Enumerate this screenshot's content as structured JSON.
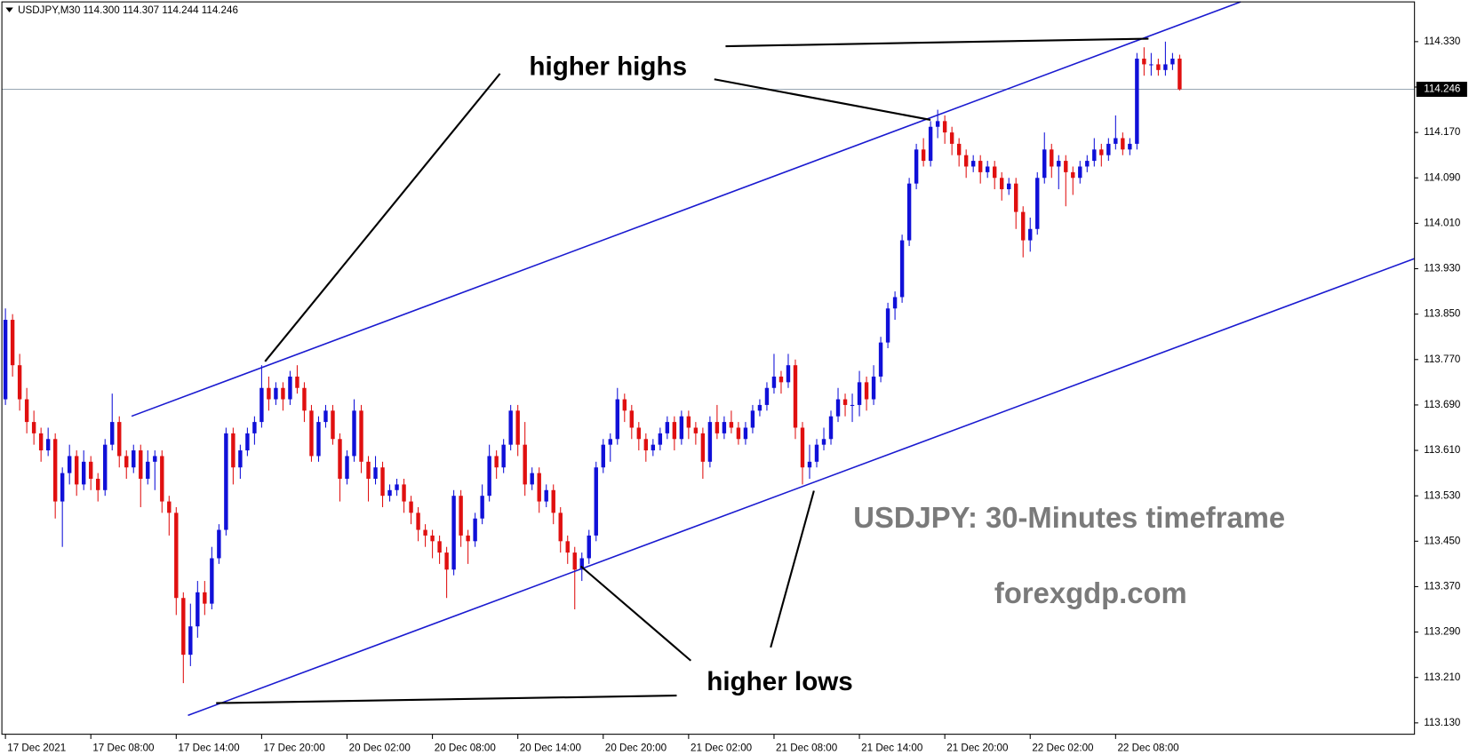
{
  "chart_data": {
    "type": "candlestick",
    "title": "USDJPY,M30 114.300 114.307 114.244 114.246",
    "up_color": "#1010d8",
    "down_color": "#e01010",
    "xlim": [
      -0.5,
      198
    ],
    "ylim": [
      113.11,
      114.4
    ],
    "yticks": [
      {
        "value": 114.33,
        "label": "114.330"
      },
      {
        "value": 114.25,
        "label": "114.250"
      },
      {
        "value": 114.17,
        "label": "114.170"
      },
      {
        "value": 114.09,
        "label": "114.090"
      },
      {
        "value": 114.01,
        "label": "114.010"
      },
      {
        "value": 113.93,
        "label": "113.930"
      },
      {
        "value": 113.85,
        "label": "113.850"
      },
      {
        "value": 113.77,
        "label": "113.770"
      },
      {
        "value": 113.69,
        "label": "113.690"
      },
      {
        "value": 113.61,
        "label": "113.610"
      },
      {
        "value": 113.53,
        "label": "113.530"
      },
      {
        "value": 113.45,
        "label": "113.450"
      },
      {
        "value": 113.37,
        "label": "113.370"
      },
      {
        "value": 113.29,
        "label": "113.290"
      },
      {
        "value": 113.21,
        "label": "113.210"
      },
      {
        "value": 113.13,
        "label": "113.130"
      }
    ],
    "xticks": [
      {
        "value": 0,
        "label": "17 Dec 2021"
      },
      {
        "value": 12,
        "label": "17 Dec 08:00"
      },
      {
        "value": 24,
        "label": "17 Dec 14:00"
      },
      {
        "value": 36,
        "label": "17 Dec 20:00"
      },
      {
        "value": 48,
        "label": "20 Dec 02:00"
      },
      {
        "value": 60,
        "label": "20 Dec 08:00"
      },
      {
        "value": 72,
        "label": "20 Dec 14:00"
      },
      {
        "value": 84,
        "label": "20 Dec 20:00"
      },
      {
        "value": 96,
        "label": "21 Dec 02:00"
      },
      {
        "value": 108,
        "label": "21 Dec 08:00"
      },
      {
        "value": 120,
        "label": "21 Dec 14:00"
      },
      {
        "value": 132,
        "label": "21 Dec 20:00"
      },
      {
        "value": 144,
        "label": "22 Dec 02:00"
      },
      {
        "value": 156,
        "label": "22 Dec 08:00"
      }
    ],
    "last_price": {
      "value": 114.246,
      "label": "114.246"
    },
    "annotations": {
      "highs": "higher highs",
      "lows": "higher lows",
      "timeframe": "USDJPY: 30-Minutes timeframe",
      "site": "forexgdp.com"
    },
    "ohlc": [
      [
        113.7,
        113.86,
        113.69,
        113.84
      ],
      [
        113.84,
        113.85,
        113.74,
        113.76
      ],
      [
        113.76,
        113.78,
        113.68,
        113.7
      ],
      [
        113.7,
        113.72,
        113.64,
        113.66
      ],
      [
        113.66,
        113.68,
        113.62,
        113.64
      ],
      [
        113.64,
        113.65,
        113.59,
        113.61
      ],
      [
        113.61,
        113.65,
        113.6,
        113.63
      ],
      [
        113.63,
        113.64,
        113.49,
        113.52
      ],
      [
        113.52,
        113.58,
        113.44,
        113.57
      ],
      [
        113.57,
        113.62,
        113.55,
        113.6
      ],
      [
        113.6,
        113.61,
        113.53,
        113.55
      ],
      [
        113.55,
        113.61,
        113.54,
        113.59
      ],
      [
        113.59,
        113.6,
        113.54,
        113.56
      ],
      [
        113.56,
        113.57,
        113.52,
        113.54
      ],
      [
        113.54,
        113.63,
        113.53,
        113.62
      ],
      [
        113.62,
        113.71,
        113.61,
        113.66
      ],
      [
        113.66,
        113.67,
        113.58,
        113.6
      ],
      [
        113.6,
        113.61,
        113.56,
        113.58
      ],
      [
        113.58,
        113.62,
        113.57,
        113.61
      ],
      [
        113.61,
        113.62,
        113.51,
        113.56
      ],
      [
        113.56,
        113.61,
        113.55,
        113.59
      ],
      [
        113.59,
        113.61,
        113.54,
        113.6
      ],
      [
        113.6,
        113.61,
        113.5,
        113.52
      ],
      [
        113.52,
        113.53,
        113.46,
        113.5
      ],
      [
        113.5,
        113.51,
        113.32,
        113.35
      ],
      [
        113.35,
        113.36,
        113.2,
        113.25
      ],
      [
        113.25,
        113.34,
        113.23,
        113.3
      ],
      [
        113.3,
        113.38,
        113.28,
        113.36
      ],
      [
        113.36,
        113.38,
        113.32,
        113.34
      ],
      [
        113.34,
        113.44,
        113.33,
        113.42
      ],
      [
        113.42,
        113.48,
        113.41,
        113.47
      ],
      [
        113.47,
        113.65,
        113.46,
        113.64
      ],
      [
        113.64,
        113.65,
        113.55,
        113.58
      ],
      [
        113.58,
        113.62,
        113.56,
        113.61
      ],
      [
        113.61,
        113.65,
        113.6,
        113.64
      ],
      [
        113.64,
        113.67,
        113.62,
        113.66
      ],
      [
        113.66,
        113.76,
        113.65,
        113.72
      ],
      [
        113.72,
        113.74,
        113.68,
        113.7
      ],
      [
        113.7,
        113.73,
        113.69,
        113.72
      ],
      [
        113.72,
        113.73,
        113.68,
        113.7
      ],
      [
        113.7,
        113.75,
        113.69,
        113.74
      ],
      [
        113.74,
        113.76,
        113.71,
        113.72
      ],
      [
        113.72,
        113.73,
        113.66,
        113.68
      ],
      [
        113.68,
        113.69,
        113.59,
        113.6
      ],
      [
        113.6,
        113.67,
        113.59,
        113.66
      ],
      [
        113.66,
        113.69,
        113.65,
        113.68
      ],
      [
        113.68,
        113.69,
        113.62,
        113.63
      ],
      [
        113.63,
        113.64,
        113.52,
        113.56
      ],
      [
        113.56,
        113.61,
        113.55,
        113.6
      ],
      [
        113.6,
        113.7,
        113.59,
        113.68
      ],
      [
        113.68,
        113.69,
        113.57,
        113.59
      ],
      [
        113.59,
        113.6,
        113.52,
        113.56
      ],
      [
        113.56,
        113.6,
        113.55,
        113.58
      ],
      [
        113.58,
        113.59,
        113.51,
        113.53
      ],
      [
        113.53,
        113.55,
        113.52,
        113.54
      ],
      [
        113.54,
        113.56,
        113.53,
        113.55
      ],
      [
        113.55,
        113.56,
        113.5,
        113.52
      ],
      [
        113.52,
        113.53,
        113.48,
        113.5
      ],
      [
        113.5,
        113.51,
        113.45,
        113.47
      ],
      [
        113.47,
        113.48,
        113.44,
        113.46
      ],
      [
        113.46,
        113.47,
        113.42,
        113.45
      ],
      [
        113.45,
        113.46,
        113.41,
        113.43
      ],
      [
        113.43,
        113.44,
        113.35,
        113.4
      ],
      [
        113.4,
        113.54,
        113.39,
        113.53
      ],
      [
        113.53,
        113.54,
        113.44,
        113.46
      ],
      [
        113.46,
        113.47,
        113.41,
        113.45
      ],
      [
        113.45,
        113.5,
        113.44,
        113.49
      ],
      [
        113.49,
        113.55,
        113.48,
        113.53
      ],
      [
        113.53,
        113.62,
        113.52,
        113.6
      ],
      [
        113.6,
        113.61,
        113.56,
        113.58
      ],
      [
        113.58,
        113.63,
        113.57,
        113.62
      ],
      [
        113.62,
        113.69,
        113.61,
        113.68
      ],
      [
        113.68,
        113.69,
        113.6,
        113.62
      ],
      [
        113.62,
        113.66,
        113.53,
        113.55
      ],
      [
        113.55,
        113.58,
        113.54,
        113.57
      ],
      [
        113.57,
        113.58,
        113.5,
        113.52
      ],
      [
        113.52,
        113.55,
        113.51,
        113.54
      ],
      [
        113.54,
        113.55,
        113.48,
        113.5
      ],
      [
        113.5,
        113.51,
        113.43,
        113.45
      ],
      [
        113.45,
        113.46,
        113.41,
        113.43
      ],
      [
        113.43,
        113.44,
        113.33,
        113.4
      ],
      [
        113.4,
        113.43,
        113.38,
        113.42
      ],
      [
        113.42,
        113.47,
        113.41,
        113.46
      ],
      [
        113.46,
        113.59,
        113.45,
        113.58
      ],
      [
        113.58,
        113.63,
        113.57,
        113.62
      ],
      [
        113.62,
        113.64,
        113.59,
        113.63
      ],
      [
        113.63,
        113.72,
        113.62,
        113.7
      ],
      [
        113.7,
        113.71,
        113.66,
        113.68
      ],
      [
        113.68,
        113.69,
        113.63,
        113.65
      ],
      [
        113.65,
        113.66,
        113.61,
        113.63
      ],
      [
        113.63,
        113.64,
        113.59,
        113.61
      ],
      [
        113.61,
        113.63,
        113.6,
        113.62
      ],
      [
        113.62,
        113.65,
        113.61,
        113.64
      ],
      [
        113.64,
        113.67,
        113.63,
        113.66
      ],
      [
        113.66,
        113.67,
        113.61,
        113.63
      ],
      [
        113.63,
        113.68,
        113.62,
        113.67
      ],
      [
        113.67,
        113.68,
        113.63,
        113.65
      ],
      [
        113.65,
        113.66,
        113.62,
        113.64
      ],
      [
        113.64,
        113.65,
        113.56,
        113.59
      ],
      [
        113.59,
        113.67,
        113.58,
        113.66
      ],
      [
        113.66,
        113.69,
        113.63,
        113.64
      ],
      [
        113.64,
        113.67,
        113.63,
        113.66
      ],
      [
        113.66,
        113.68,
        113.64,
        113.65
      ],
      [
        113.65,
        113.66,
        113.62,
        113.63
      ],
      [
        113.63,
        113.66,
        113.62,
        113.65
      ],
      [
        113.65,
        113.69,
        113.64,
        113.68
      ],
      [
        113.68,
        113.7,
        113.67,
        113.69
      ],
      [
        113.69,
        113.73,
        113.68,
        113.72
      ],
      [
        113.72,
        113.78,
        113.71,
        113.74
      ],
      [
        113.74,
        113.75,
        113.71,
        113.73
      ],
      [
        113.73,
        113.78,
        113.72,
        113.76
      ],
      [
        113.76,
        113.77,
        113.63,
        113.65
      ],
      [
        113.65,
        113.66,
        113.55,
        113.58
      ],
      [
        113.58,
        113.62,
        113.56,
        113.59
      ],
      [
        113.59,
        113.63,
        113.58,
        113.62
      ],
      [
        113.62,
        113.65,
        113.61,
        113.63
      ],
      [
        113.63,
        113.68,
        113.62,
        113.67
      ],
      [
        113.67,
        113.72,
        113.66,
        113.7
      ],
      [
        113.7,
        113.71,
        113.67,
        113.69
      ],
      [
        113.69,
        113.71,
        113.66,
        113.69
      ],
      [
        113.69,
        113.75,
        113.67,
        113.73
      ],
      [
        113.73,
        113.74,
        113.68,
        113.7
      ],
      [
        113.7,
        113.76,
        113.69,
        113.74
      ],
      [
        113.74,
        113.81,
        113.73,
        113.8
      ],
      [
        113.8,
        113.87,
        113.79,
        113.86
      ],
      [
        113.86,
        113.89,
        113.84,
        113.88
      ],
      [
        113.88,
        113.99,
        113.87,
        113.98
      ],
      [
        113.98,
        114.09,
        113.97,
        114.08
      ],
      [
        114.08,
        114.15,
        114.07,
        114.14
      ],
      [
        114.14,
        114.16,
        114.11,
        114.12
      ],
      [
        114.12,
        114.19,
        114.11,
        114.18
      ],
      [
        114.18,
        114.21,
        114.16,
        114.19
      ],
      [
        114.19,
        114.2,
        114.15,
        114.17
      ],
      [
        114.17,
        114.18,
        114.13,
        114.15
      ],
      [
        114.15,
        114.16,
        114.11,
        114.13
      ],
      [
        114.13,
        114.14,
        114.09,
        114.11
      ],
      [
        114.11,
        114.13,
        114.1,
        114.12
      ],
      [
        114.12,
        114.13,
        114.08,
        114.1
      ],
      [
        114.1,
        114.12,
        114.09,
        114.11
      ],
      [
        114.11,
        114.12,
        114.07,
        114.09
      ],
      [
        114.09,
        114.1,
        114.05,
        114.07
      ],
      [
        114.07,
        114.09,
        114.06,
        114.08
      ],
      [
        114.08,
        114.09,
        114.0,
        114.03
      ],
      [
        114.03,
        114.04,
        113.95,
        113.98
      ],
      [
        113.98,
        114.02,
        113.96,
        114.0
      ],
      [
        114.0,
        114.1,
        113.99,
        114.09
      ],
      [
        114.09,
        114.17,
        114.08,
        114.14
      ],
      [
        114.14,
        114.15,
        114.09,
        114.11
      ],
      [
        114.11,
        114.13,
        114.07,
        114.12
      ],
      [
        114.12,
        114.13,
        114.04,
        114.1
      ],
      [
        114.1,
        114.11,
        114.06,
        114.09
      ],
      [
        114.09,
        114.12,
        114.08,
        114.11
      ],
      [
        114.11,
        114.13,
        114.1,
        114.12
      ],
      [
        114.12,
        114.16,
        114.11,
        114.14
      ],
      [
        114.14,
        114.15,
        114.11,
        114.13
      ],
      [
        114.13,
        114.16,
        114.12,
        114.15
      ],
      [
        114.15,
        114.2,
        114.14,
        114.16
      ],
      [
        114.16,
        114.17,
        114.13,
        114.14
      ],
      [
        114.14,
        114.16,
        114.13,
        114.15
      ],
      [
        114.15,
        114.31,
        114.14,
        114.3
      ],
      [
        114.3,
        114.32,
        114.27,
        114.29
      ],
      [
        114.29,
        114.31,
        114.27,
        114.29
      ],
      [
        114.29,
        114.3,
        114.27,
        114.28
      ],
      [
        114.28,
        114.33,
        114.27,
        114.29
      ],
      [
        114.29,
        114.31,
        114.28,
        114.3
      ],
      [
        114.3,
        114.307,
        114.244,
        114.246
      ]
    ]
  }
}
